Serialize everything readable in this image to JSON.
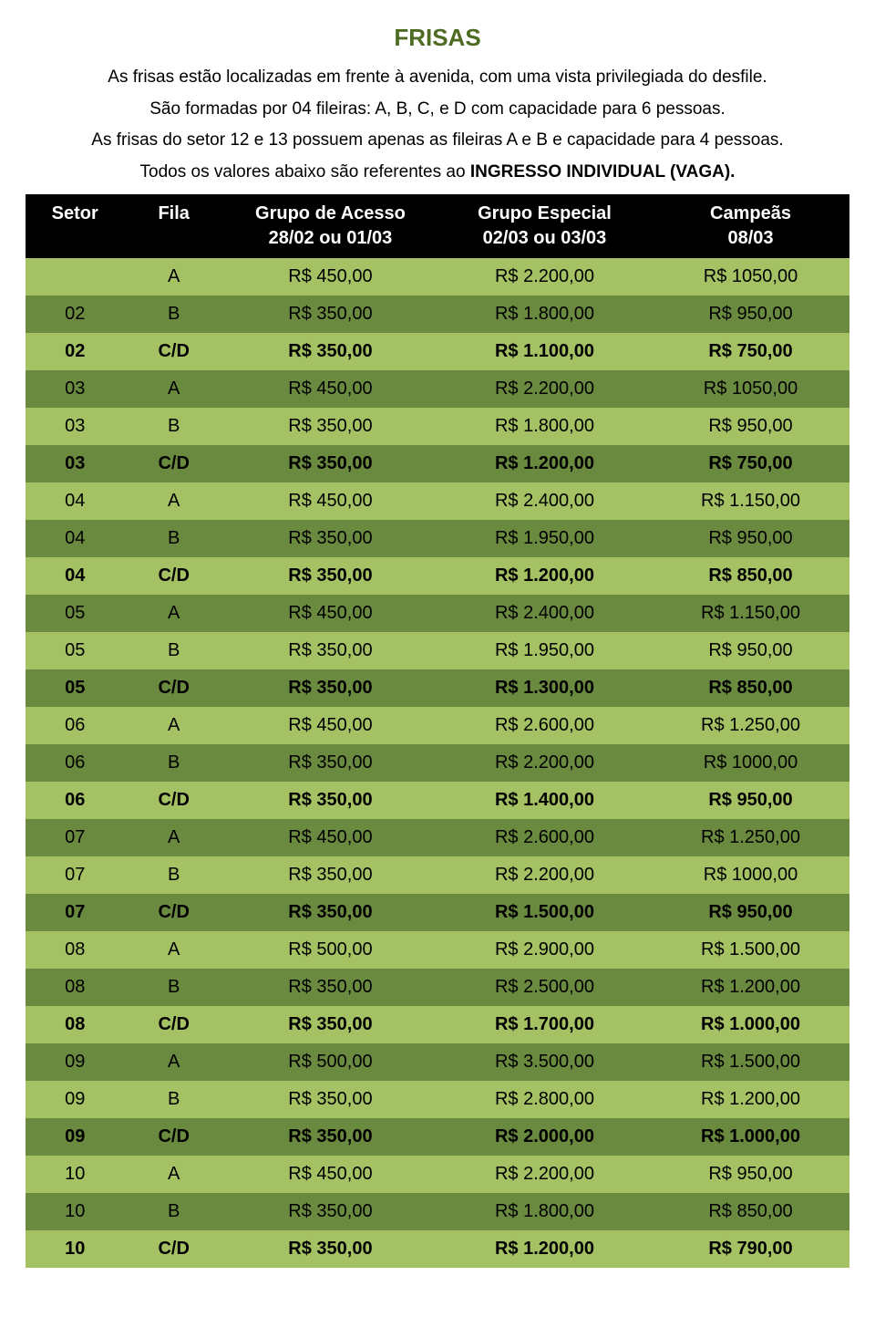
{
  "colors": {
    "title": "#4e6b24",
    "header_bg": "#000000",
    "header_text": "#ffffff",
    "row_light": "#a4c263",
    "row_dark": "#6a8a3f",
    "text": "#000000"
  },
  "title": "FRISAS",
  "intro": {
    "p1": "As frisas estão localizadas em frente à avenida, com uma vista privilegiada do desfile.",
    "p2": "São formadas por 04 fileiras: A, B, C, e D com capacidade para 6 pessoas.",
    "p3": "As frisas do setor 12 e 13 possuem apenas as fileiras A e B e capacidade para 4 pessoas.",
    "p4_pre": "Todos os valores abaixo são referentes ao ",
    "p4_bold": "INGRESSO INDIVIDUAL (VAGA)."
  },
  "headers": {
    "setor": "Setor",
    "fila": "Fila",
    "acesso": "Grupo de Acesso",
    "especial": "Grupo Especial",
    "campeas": "Campeãs",
    "acesso_date": "28/02 ou 01/03",
    "especial_date": "02/03 ou 03/03",
    "campeas_date": "08/03"
  },
  "rows": [
    {
      "setor": "",
      "fila": "A",
      "acesso": "R$ 450,00",
      "especial": "R$ 2.200,00",
      "campeas": "R$ 1050,00",
      "bold": false,
      "shade": "light"
    },
    {
      "setor": "02",
      "fila": "B",
      "acesso": "R$ 350,00",
      "especial": "R$ 1.800,00",
      "campeas": "R$ 950,00",
      "bold": false,
      "shade": "dark"
    },
    {
      "setor": "02",
      "fila": "C/D",
      "acesso": "R$ 350,00",
      "especial": "R$ 1.100,00",
      "campeas": "R$ 750,00",
      "bold": true,
      "shade": "light"
    },
    {
      "setor": "03",
      "fila": "A",
      "acesso": "R$ 450,00",
      "especial": "R$ 2.200,00",
      "campeas": "R$ 1050,00",
      "bold": false,
      "shade": "dark"
    },
    {
      "setor": "03",
      "fila": "B",
      "acesso": "R$ 350,00",
      "especial": "R$ 1.800,00",
      "campeas": "R$ 950,00",
      "bold": false,
      "shade": "light"
    },
    {
      "setor": "03",
      "fila": "C/D",
      "acesso": "R$ 350,00",
      "especial": "R$ 1.200,00",
      "campeas": "R$ 750,00",
      "bold": true,
      "shade": "dark"
    },
    {
      "setor": "04",
      "fila": "A",
      "acesso": "R$ 450,00",
      "especial": "R$ 2.400,00",
      "campeas": "R$ 1.150,00",
      "bold": false,
      "shade": "light"
    },
    {
      "setor": "04",
      "fila": "B",
      "acesso": "R$ 350,00",
      "especial": "R$ 1.950,00",
      "campeas": "R$ 950,00",
      "bold": false,
      "shade": "dark"
    },
    {
      "setor": "04",
      "fila": "C/D",
      "acesso": "R$ 350,00",
      "especial": "R$ 1.200,00",
      "campeas": "R$ 850,00",
      "bold": true,
      "shade": "light"
    },
    {
      "setor": "05",
      "fila": "A",
      "acesso": "R$ 450,00",
      "especial": "R$ 2.400,00",
      "campeas": "R$ 1.150,00",
      "bold": false,
      "shade": "dark"
    },
    {
      "setor": "05",
      "fila": "B",
      "acesso": "R$ 350,00",
      "especial": "R$ 1.950,00",
      "campeas": "R$ 950,00",
      "bold": false,
      "shade": "light"
    },
    {
      "setor": "05",
      "fila": "C/D",
      "acesso": "R$ 350,00",
      "especial": "R$ 1.300,00",
      "campeas": "R$ 850,00",
      "bold": true,
      "shade": "dark"
    },
    {
      "setor": "06",
      "fila": "A",
      "acesso": "R$ 450,00",
      "especial": "R$ 2.600,00",
      "campeas": "R$ 1.250,00",
      "bold": false,
      "shade": "light"
    },
    {
      "setor": "06",
      "fila": "B",
      "acesso": "R$ 350,00",
      "especial": "R$ 2.200,00",
      "campeas": "R$ 1000,00",
      "bold": false,
      "shade": "dark"
    },
    {
      "setor": "06",
      "fila": "C/D",
      "acesso": "R$ 350,00",
      "especial": "R$ 1.400,00",
      "campeas": "R$ 950,00",
      "bold": true,
      "shade": "light"
    },
    {
      "setor": "07",
      "fila": "A",
      "acesso": "R$ 450,00",
      "especial": "R$ 2.600,00",
      "campeas": "R$ 1.250,00",
      "bold": false,
      "shade": "dark"
    },
    {
      "setor": "07",
      "fila": "B",
      "acesso": "R$ 350,00",
      "especial": "R$ 2.200,00",
      "campeas": "R$ 1000,00",
      "bold": false,
      "shade": "light"
    },
    {
      "setor": "07",
      "fila": "C/D",
      "acesso": "R$ 350,00",
      "especial": "R$ 1.500,00",
      "campeas": "R$ 950,00",
      "bold": true,
      "shade": "dark"
    },
    {
      "setor": "08",
      "fila": "A",
      "acesso": "R$ 500,00",
      "especial": "R$ 2.900,00",
      "campeas": "R$ 1.500,00",
      "bold": false,
      "shade": "light"
    },
    {
      "setor": "08",
      "fila": "B",
      "acesso": "R$ 350,00",
      "especial": "R$ 2.500,00",
      "campeas": "R$ 1.200,00",
      "bold": false,
      "shade": "dark"
    },
    {
      "setor": "08",
      "fila": "C/D",
      "acesso": "R$ 350,00",
      "especial": "R$ 1.700,00",
      "campeas": "R$ 1.000,00",
      "bold": true,
      "shade": "light"
    },
    {
      "setor": "09",
      "fila": "A",
      "acesso": "R$ 500,00",
      "especial": "R$ 3.500,00",
      "campeas": "R$ 1.500,00",
      "bold": false,
      "shade": "dark"
    },
    {
      "setor": "09",
      "fila": "B",
      "acesso": "R$ 350,00",
      "especial": "R$ 2.800,00",
      "campeas": "R$ 1.200,00",
      "bold": false,
      "shade": "light"
    },
    {
      "setor": "09",
      "fila": "C/D",
      "acesso": "R$ 350,00",
      "especial": "R$ 2.000,00",
      "campeas": "R$ 1.000,00",
      "bold": true,
      "shade": "dark"
    },
    {
      "setor": "10",
      "fila": "A",
      "acesso": "R$ 450,00",
      "especial": "R$ 2.200,00",
      "campeas": "R$ 950,00",
      "bold": false,
      "shade": "light"
    },
    {
      "setor": "10",
      "fila": "B",
      "acesso": "R$ 350,00",
      "especial": "R$ 1.800,00",
      "campeas": "R$ 850,00",
      "bold": false,
      "shade": "dark"
    },
    {
      "setor": "10",
      "fila": "C/D",
      "acesso": "R$ 350,00",
      "especial": "R$ 1.200,00",
      "campeas": "R$ 790,00",
      "bold": true,
      "shade": "light"
    }
  ]
}
